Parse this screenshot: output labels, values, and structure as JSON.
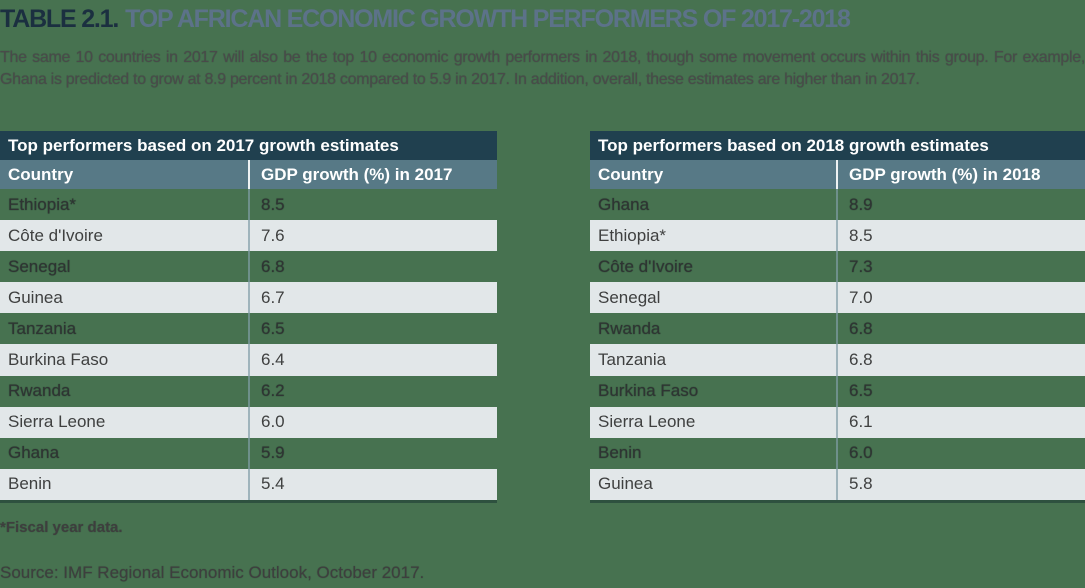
{
  "header": {
    "table_label": "TABLE 2.1.",
    "title": "TOP AFRICAN ECONOMIC GROWTH PERFORMERS OF 2017-2018",
    "description": "The same 10 countries in 2017 will also be the top 10 economic growth performers in 2018, though some movement occurs within this group. For example, Ghana is predicted to grow at 8.9 percent in 2018 compared to 5.9 in 2017. In addition, overall, these estimates are higher than in 2017."
  },
  "chart_data": [
    {
      "type": "table",
      "title": "Top performers based on 2017 growth estimates",
      "columns": [
        "Country",
        "GDP growth (%) in 2017"
      ],
      "rows": [
        [
          "Ethiopia*",
          "8.5"
        ],
        [
          "Côte d'Ivoire",
          "7.6"
        ],
        [
          "Senegal",
          "6.8"
        ],
        [
          "Guinea",
          "6.7"
        ],
        [
          "Tanzania",
          "6.5"
        ],
        [
          "Burkina Faso",
          "6.4"
        ],
        [
          "Rwanda",
          "6.2"
        ],
        [
          "Sierra Leone",
          "6.0"
        ],
        [
          "Ghana",
          "5.9"
        ],
        [
          "Benin",
          "5.4"
        ]
      ]
    },
    {
      "type": "table",
      "title": "Top performers based on 2018 growth estimates",
      "columns": [
        "Country",
        "GDP growth (%) in 2018"
      ],
      "rows": [
        [
          "Ghana",
          "8.9"
        ],
        [
          "Ethiopia*",
          "8.5"
        ],
        [
          "Côte d'Ivoire",
          "7.3"
        ],
        [
          "Senegal",
          "7.0"
        ],
        [
          "Rwanda",
          "6.8"
        ],
        [
          "Tanzania",
          "6.8"
        ],
        [
          "Burkina Faso",
          "6.5"
        ],
        [
          "Sierra Leone",
          "6.1"
        ],
        [
          "Benin",
          "6.0"
        ],
        [
          "Guinea",
          "5.8"
        ]
      ]
    }
  ],
  "footer": {
    "fiscal_note": "*Fiscal year data.",
    "source": "Source: IMF Regional Economic Outlook, October 2017."
  },
  "colors": {
    "page_background": "#477250",
    "table_header_bg": "#20404F",
    "column_header_bg": "#577986",
    "row_light_bg": "#E2E7E9",
    "title_label": "#1B2F40",
    "title_text": "#5C7289",
    "body_text": "#4A4A4A"
  }
}
